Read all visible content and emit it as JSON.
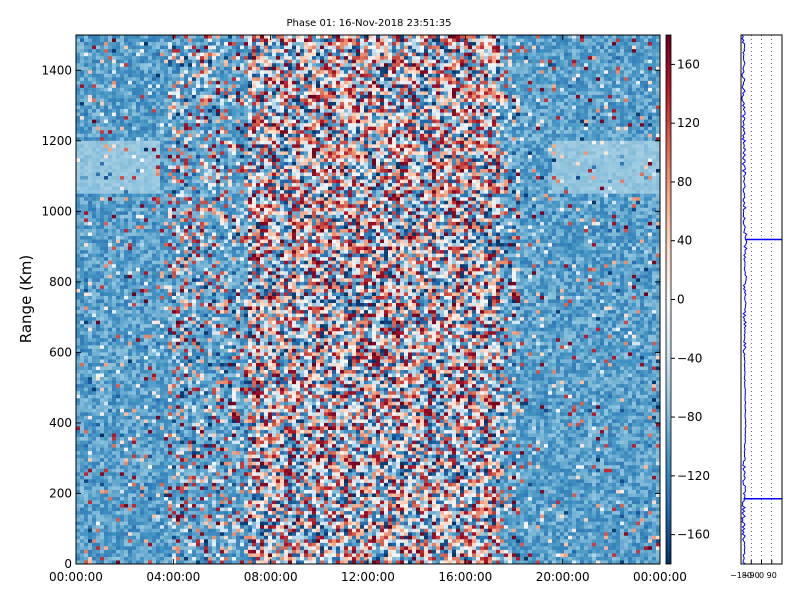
{
  "chart_data": [
    {
      "type": "heatmap",
      "title": "Phase 01: 16-Nov-2018 23:51:35",
      "ylabel": "Range (Km)",
      "xlabel": "",
      "x_ticks": [
        "00:00:00",
        "04:00:00",
        "08:00:00",
        "12:00:00",
        "16:00:00",
        "20:00:00",
        "00:00:00"
      ],
      "x_range_hours": [
        0,
        24
      ],
      "y_ticks": [
        0,
        200,
        400,
        600,
        800,
        1000,
        1200,
        1400
      ],
      "ylim": [
        0,
        1500
      ],
      "grid": false,
      "colorbar": {
        "ticks": [
          160,
          120,
          80,
          40,
          0,
          -40,
          -80,
          -120,
          -160
        ],
        "range": [
          -180,
          180
        ],
        "colormap": "RdBu_r",
        "color_low": "#08306b",
        "color_high": "#67000d"
      },
      "noisy_phase_band_hours": [
        7,
        17.5
      ],
      "quiet_periods_hours": [
        [
          0,
          3.5
        ],
        [
          18,
          24
        ]
      ]
    },
    {
      "type": "line",
      "x_ticks": [
        "−180",
        "−90",
        "0",
        "90"
      ],
      "xlim": [
        -180,
        180
      ],
      "ylim": [
        0,
        1500
      ],
      "grid": "vertical-dotted",
      "series_color": "#0000ff",
      "profile": [
        {
          "range": 0,
          "phase": -150
        },
        {
          "range": 100,
          "phase": -160
        },
        {
          "range": 190,
          "phase": -155
        },
        {
          "range": 300,
          "phase": -150
        },
        {
          "range": 400,
          "phase": -140
        },
        {
          "range": 500,
          "phase": -145
        },
        {
          "range": 600,
          "phase": -150
        },
        {
          "range": 800,
          "phase": -145
        },
        {
          "range": 920,
          "phase": -140
        },
        {
          "range": 1000,
          "phase": -150
        },
        {
          "range": 1200,
          "phase": -155
        },
        {
          "range": 1400,
          "phase": -160
        },
        {
          "range": 1500,
          "phase": -158
        }
      ],
      "spikes": [
        {
          "range": 920,
          "phase": 180
        },
        {
          "range": 185,
          "phase": 180
        }
      ]
    }
  ]
}
